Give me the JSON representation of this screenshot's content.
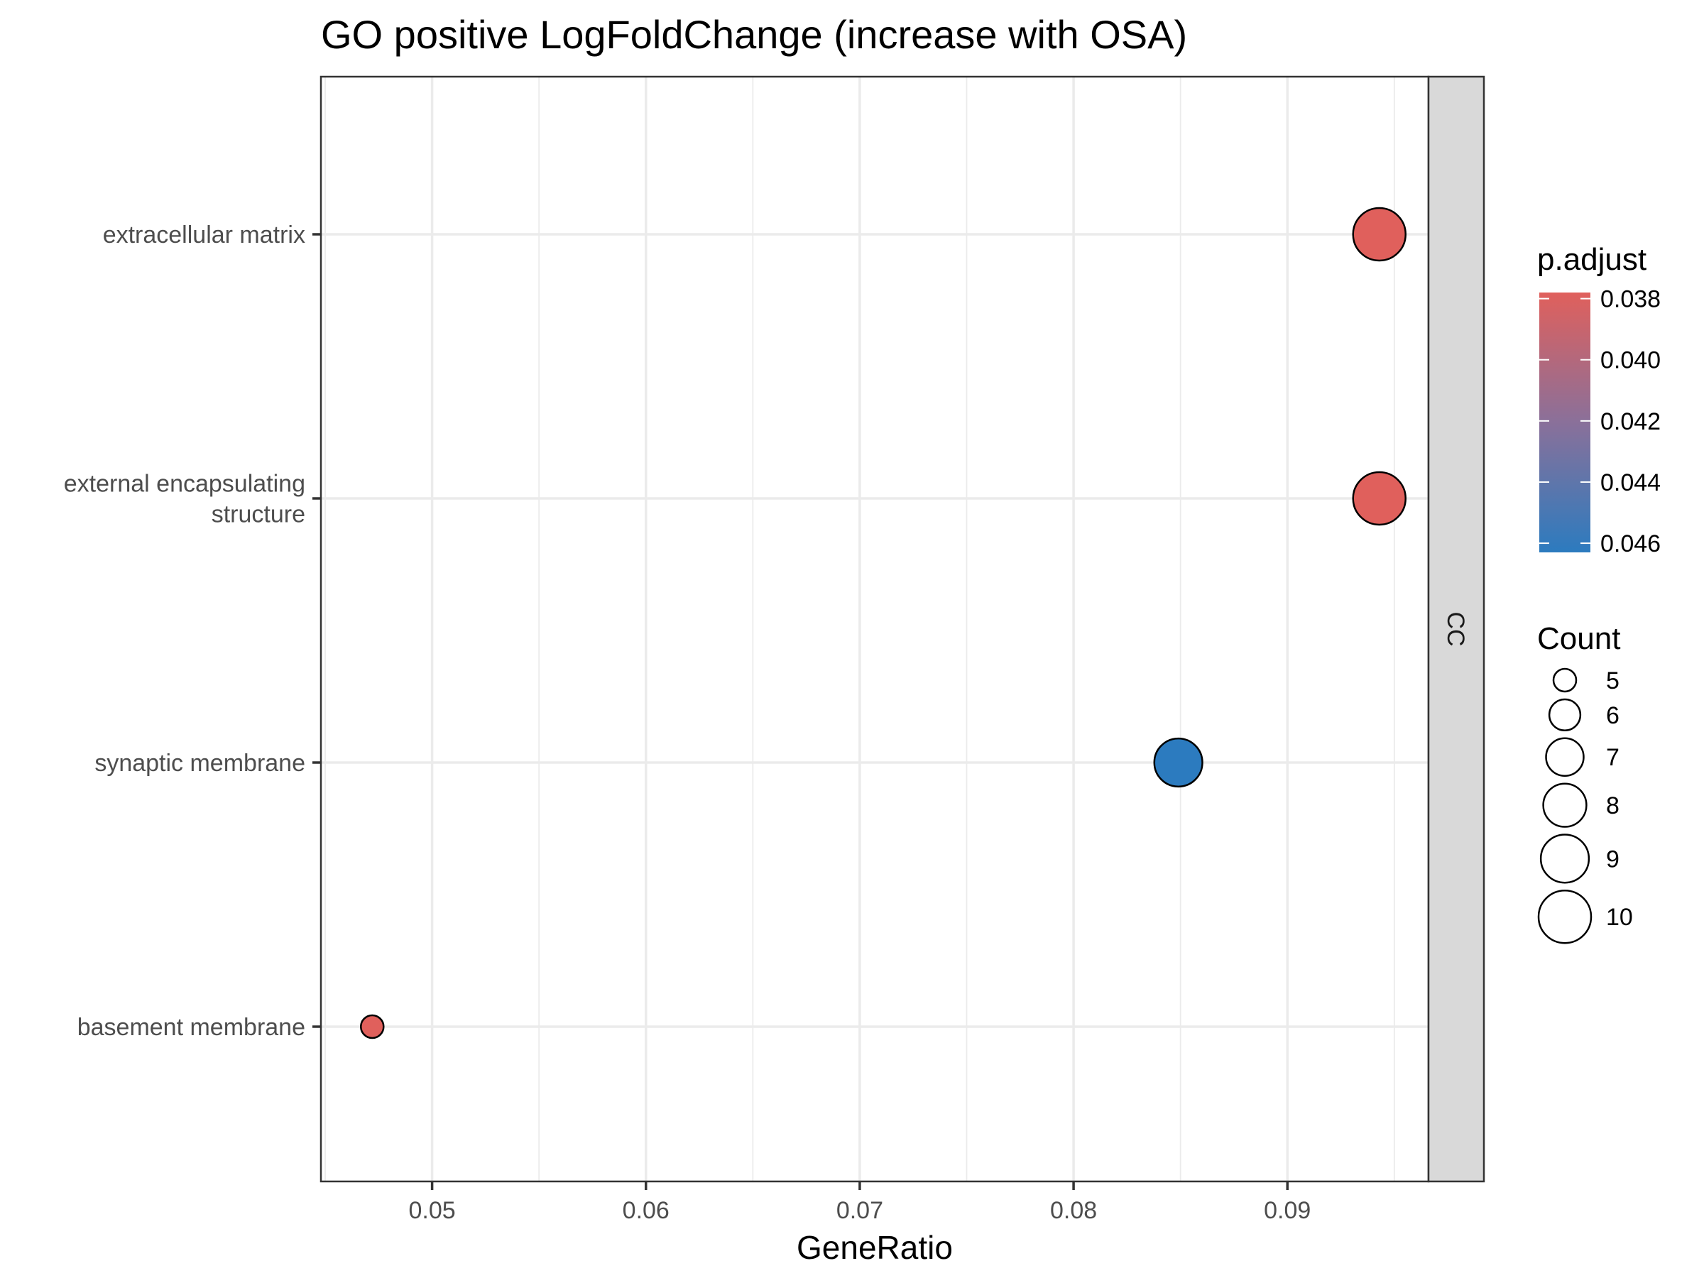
{
  "chart_data": {
    "type": "scatter",
    "title": "GO positive LogFoldChange (increase with OSA)",
    "xlabel": "GeneRatio",
    "ylabel": "",
    "xlim": [
      0.0448,
      0.0966
    ],
    "xticks": [
      0.05,
      0.06,
      0.07,
      0.08,
      0.09
    ],
    "xtick_labels": [
      "0.05",
      "0.06",
      "0.07",
      "0.08",
      "0.09"
    ],
    "categories": [
      {
        "label_lines": [
          "extracellular matrix"
        ]
      },
      {
        "label_lines": [
          "external encapsulating",
          "structure"
        ]
      },
      {
        "label_lines": [
          "synaptic membrane"
        ]
      },
      {
        "label_lines": [
          "basement membrane"
        ]
      }
    ],
    "points": [
      {
        "term": "extracellular matrix",
        "gene_ratio": 0.0943,
        "count": 10,
        "p_adjust": 0.0378
      },
      {
        "term": "external encapsulating structure",
        "gene_ratio": 0.0943,
        "count": 10,
        "p_adjust": 0.0378
      },
      {
        "term": "synaptic membrane",
        "gene_ratio": 0.0849,
        "count": 9,
        "p_adjust": 0.0463
      },
      {
        "term": "basement membrane",
        "gene_ratio": 0.0472,
        "count": 5,
        "p_adjust": 0.0378
      }
    ],
    "facet_label": "CC",
    "grid": true,
    "legend_position": "right",
    "color_legend": {
      "title": "p.adjust",
      "range": [
        0.0378,
        0.0463
      ],
      "ticks": [
        0.038,
        0.04,
        0.042,
        0.044,
        0.046
      ],
      "tick_labels": [
        "0.038",
        "0.040",
        "0.042",
        "0.044",
        "0.046"
      ],
      "low_color": "#e0605c",
      "mid_color": "#8a709a",
      "high_color": "#2c7bbf"
    },
    "size_legend": {
      "title": "Count",
      "values": [
        5,
        6,
        7,
        8,
        9,
        10
      ],
      "labels": [
        "5",
        "6",
        "7",
        "8",
        "9",
        "10"
      ]
    }
  }
}
